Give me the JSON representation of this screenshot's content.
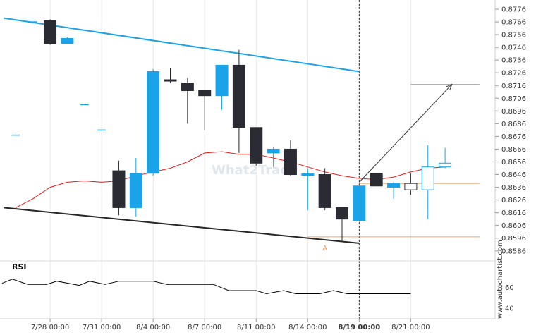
{
  "chart_data": {
    "type": "candlestick",
    "y_ticks": [
      "0.8776",
      "0.8766",
      "0.8756",
      "0.8746",
      "0.8736",
      "0.8726",
      "0.8716",
      "0.8706",
      "0.8696",
      "0.8686",
      "0.8676",
      "0.8666",
      "0.8656",
      "0.8646",
      "0.8636",
      "0.8626",
      "0.8616",
      "0.8606",
      "0.8596",
      "0.8586"
    ],
    "ylim": [
      0.8577,
      0.8781
    ],
    "x_labels": [
      {
        "text": "7/28 00:00",
        "slot": 3,
        "bold": false
      },
      {
        "text": "7/31 00:00",
        "slot": 6,
        "bold": false
      },
      {
        "text": "8/4 00:00",
        "slot": 9,
        "bold": false
      },
      {
        "text": "8/7 00:00",
        "slot": 12,
        "bold": false
      },
      {
        "text": "8/11 00:00",
        "slot": 15,
        "bold": false
      },
      {
        "text": "8/14 00:00",
        "slot": 18,
        "bold": false
      },
      {
        "text": "8/19 00:00",
        "slot": 21,
        "bold": true
      },
      {
        "text": "8/21 00:00",
        "slot": 24,
        "bold": false
      }
    ],
    "candles": [
      {
        "slot": 1,
        "o": 0.8677,
        "c": 0.8677,
        "h": 0.8677,
        "l": 0.8677,
        "color": "blue"
      },
      {
        "slot": 2,
        "o": 0.8766,
        "c": 0.8766,
        "h": 0.8766,
        "l": 0.8766,
        "color": "blue"
      },
      {
        "slot": 3,
        "o": 0.8767,
        "c": 0.8749,
        "h": 0.8768,
        "l": 0.8748,
        "color": "black"
      },
      {
        "slot": 4,
        "o": 0.8749,
        "c": 0.8753,
        "h": 0.8754,
        "l": 0.8749,
        "color": "blue"
      },
      {
        "slot": 5,
        "o": 0.8701,
        "c": 0.8701,
        "h": 0.8701,
        "l": 0.8701,
        "color": "blue"
      },
      {
        "slot": 6,
        "o": 0.8681,
        "c": 0.8681,
        "h": 0.8681,
        "l": 0.8681,
        "color": "blue"
      },
      {
        "slot": 7,
        "o": 0.8649,
        "c": 0.862,
        "h": 0.8657,
        "l": 0.8614,
        "color": "black"
      },
      {
        "slot": 8,
        "o": 0.862,
        "c": 0.8647,
        "h": 0.8659,
        "l": 0.8613,
        "color": "blue"
      },
      {
        "slot": 9,
        "o": 0.8647,
        "c": 0.8727,
        "h": 0.8729,
        "l": 0.8645,
        "color": "blue"
      },
      {
        "slot": 10,
        "o": 0.872,
        "c": 0.8719,
        "h": 0.873,
        "l": 0.8718,
        "color": "black"
      },
      {
        "slot": 11,
        "o": 0.8718,
        "c": 0.8712,
        "h": 0.8722,
        "l": 0.8686,
        "color": "black"
      },
      {
        "slot": 12,
        "o": 0.8712,
        "c": 0.8708,
        "h": 0.8712,
        "l": 0.8681,
        "color": "black"
      },
      {
        "slot": 13,
        "o": 0.8708,
        "c": 0.8732,
        "h": 0.8732,
        "l": 0.8697,
        "color": "blue"
      },
      {
        "slot": 14,
        "o": 0.8732,
        "c": 0.8683,
        "h": 0.8744,
        "l": 0.8663,
        "color": "black"
      },
      {
        "slot": 15,
        "o": 0.8683,
        "c": 0.8655,
        "h": 0.8683,
        "l": 0.8653,
        "color": "black"
      },
      {
        "slot": 16,
        "o": 0.8663,
        "c": 0.8666,
        "h": 0.8668,
        "l": 0.8652,
        "color": "blue"
      },
      {
        "slot": 17,
        "o": 0.8666,
        "c": 0.8646,
        "h": 0.8673,
        "l": 0.8645,
        "color": "black"
      },
      {
        "slot": 18,
        "o": 0.8646,
        "c": 0.8646,
        "h": 0.8651,
        "l": 0.8618,
        "color": "blue"
      },
      {
        "slot": 19,
        "o": 0.8646,
        "c": 0.862,
        "h": 0.8651,
        "l": 0.8618,
        "color": "black"
      },
      {
        "slot": 20,
        "o": 0.862,
        "c": 0.8611,
        "h": 0.862,
        "l": 0.8594,
        "color": "black"
      },
      {
        "slot": 21,
        "o": 0.861,
        "c": 0.8637,
        "h": 0.8638,
        "l": 0.8609,
        "color": "blue"
      },
      {
        "slot": 22,
        "o": 0.8647,
        "c": 0.8637,
        "h": 0.8647,
        "l": 0.8637,
        "color": "black"
      },
      {
        "slot": 23,
        "o": 0.8636,
        "c": 0.8639,
        "h": 0.864,
        "l": 0.8627,
        "color": "blue"
      },
      {
        "slot": 24,
        "o": 0.8634,
        "c": 0.8639,
        "h": 0.8647,
        "l": 0.863,
        "color": "hollow-black"
      },
      {
        "slot": 25,
        "o": 0.8634,
        "c": 0.8652,
        "h": 0.8669,
        "l": 0.8611,
        "color": "hollow-blue"
      },
      {
        "slot": 26,
        "o": 0.8652,
        "c": 0.8655,
        "h": 0.8667,
        "l": 0.8651,
        "color": "hollow-blue"
      }
    ],
    "moving_average": [
      {
        "slot": 1,
        "y": 0.862
      },
      {
        "slot": 2,
        "y": 0.8627
      },
      {
        "slot": 3,
        "y": 0.8636
      },
      {
        "slot": 4,
        "y": 0.864
      },
      {
        "slot": 5,
        "y": 0.8641
      },
      {
        "slot": 6,
        "y": 0.864
      },
      {
        "slot": 7,
        "y": 0.8641
      },
      {
        "slot": 8,
        "y": 0.8645
      },
      {
        "slot": 9,
        "y": 0.8648
      },
      {
        "slot": 10,
        "y": 0.8651
      },
      {
        "slot": 11,
        "y": 0.8656
      },
      {
        "slot": 12,
        "y": 0.8663
      },
      {
        "slot": 13,
        "y": 0.8664
      },
      {
        "slot": 14,
        "y": 0.8662
      },
      {
        "slot": 15,
        "y": 0.8662
      },
      {
        "slot": 16,
        "y": 0.8659
      },
      {
        "slot": 17,
        "y": 0.8656
      },
      {
        "slot": 18,
        "y": 0.8652
      },
      {
        "slot": 19,
        "y": 0.8648
      },
      {
        "slot": 20,
        "y": 0.8645
      },
      {
        "slot": 21,
        "y": 0.8643
      },
      {
        "slot": 22,
        "y": 0.8642
      },
      {
        "slot": 23,
        "y": 0.8644
      },
      {
        "slot": 24,
        "y": 0.8648
      },
      {
        "slot": 25,
        "y": 0.8651
      },
      {
        "slot": 26,
        "y": 0.8652
      }
    ],
    "resistance_line": {
      "from": {
        "slot": 0.3,
        "y": 0.8769
      },
      "to": {
        "slot": 21,
        "y": 0.8727
      }
    },
    "support_line": {
      "from": {
        "slot": 0.3,
        "y": 0.862
      },
      "to": {
        "slot": 21,
        "y": 0.8592
      }
    },
    "target_level": {
      "y": 0.8717,
      "from_slot": 24,
      "to_slot": 28
    },
    "current_level": {
      "y": 0.8639,
      "from_slot": 21,
      "to_slot": 28
    },
    "lower_level": {
      "y": 0.8597,
      "from_slot": 18,
      "to_slot": 28
    },
    "forecast_arrow": {
      "from": {
        "slot": 21,
        "y": 0.864
      },
      "to": {
        "slot": 26.4,
        "y": 0.8717
      }
    },
    "current_time_slot": 21,
    "point_marker": {
      "label": "A",
      "slot": 19,
      "y": 0.8592
    },
    "rsi": {
      "title": "RSI",
      "ticks": [
        "60",
        "40"
      ],
      "ylim": [
        30,
        80
      ],
      "values": [
        {
          "slot": 0.2,
          "y": 64
        },
        {
          "slot": 0.8,
          "y": 68
        },
        {
          "slot": 1.7,
          "y": 63
        },
        {
          "slot": 2.8,
          "y": 63
        },
        {
          "slot": 3.4,
          "y": 66
        },
        {
          "slot": 4.7,
          "y": 62
        },
        {
          "slot": 5.3,
          "y": 66
        },
        {
          "slot": 6.2,
          "y": 63
        },
        {
          "slot": 7.0,
          "y": 66
        },
        {
          "slot": 9.0,
          "y": 66
        },
        {
          "slot": 9.8,
          "y": 63
        },
        {
          "slot": 12.5,
          "y": 63
        },
        {
          "slot": 13.4,
          "y": 57
        },
        {
          "slot": 15.0,
          "y": 57
        },
        {
          "slot": 15.6,
          "y": 54
        },
        {
          "slot": 16.6,
          "y": 57
        },
        {
          "slot": 17.3,
          "y": 54
        },
        {
          "slot": 18.7,
          "y": 54
        },
        {
          "slot": 19.5,
          "y": 57
        },
        {
          "slot": 20.3,
          "y": 54
        },
        {
          "slot": 24.0,
          "y": 54
        }
      ]
    }
  },
  "watermark": "What2Trade",
  "brand": "www.autochartist.com",
  "colors": {
    "blue": "#1aa3e8",
    "black": "#2b2b33",
    "ma": "#e51b1b",
    "resistance": "#1aa3e8",
    "support": "#262626",
    "level": "#f0a060",
    "arrow": "#333333",
    "grid": "#e8e8e8"
  }
}
